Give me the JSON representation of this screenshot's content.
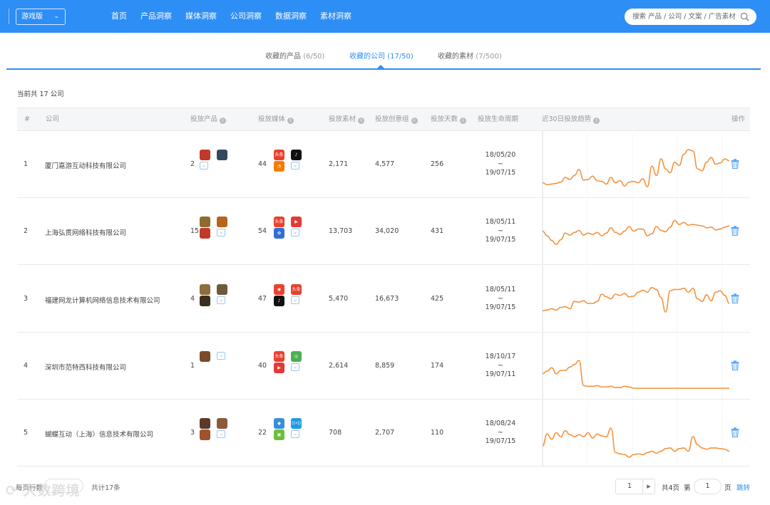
{
  "header": {
    "version_label": "游戏版",
    "nav": [
      "首页",
      "产品洞察",
      "媒体洞察",
      "公司洞察",
      "数据洞察",
      "素材洞察"
    ],
    "search_placeholder": "搜索 产品 / 公司 / 文案 / 广告素材"
  },
  "tabs": [
    {
      "label": "收藏的产品",
      "count": "(6/50)"
    },
    {
      "label": "收藏的公司",
      "count": "(17/50)"
    },
    {
      "label": "收藏的素材",
      "count": "(7/500)"
    }
  ],
  "summary": "当前共 17 公司",
  "columns": [
    "#",
    "公司",
    "投放产品",
    "投放媒体",
    "投放素材",
    "投放创意组",
    "投放天数",
    "投放生命周期",
    "近30日投放趋势",
    "操作"
  ],
  "rows": [
    {
      "idx": "1",
      "company": "厦门嘉游互动科技有限公司",
      "products": "2",
      "media": "44",
      "materials": "2,171",
      "groups": "4,577",
      "days": "256",
      "start": "18/05/20",
      "sep": "~",
      "end": "19/07/15",
      "trend": [
        0.22,
        0.19,
        0.2,
        0.21,
        0.23,
        0.3,
        0.27,
        0.33,
        0.42,
        0.26,
        0.27,
        0.32,
        0.25,
        0.24,
        0.2,
        0.3,
        0.22,
        0.25,
        0.17,
        0.23,
        0.24,
        0.22,
        0.28,
        0.16,
        0.47,
        0.33,
        0.58,
        0.43,
        0.37,
        0.53,
        0.48,
        0.65,
        0.72,
        0.7,
        0.43,
        0.4,
        0.53,
        0.6,
        0.5,
        0.52,
        0.58,
        0.55
      ]
    },
    {
      "idx": "2",
      "company": "上海弘贯网络科技有限公司",
      "products": "15",
      "media": "54",
      "materials": "13,703",
      "groups": "34,020",
      "days": "431",
      "start": "18/05/11",
      "sep": "~",
      "end": "19/07/15",
      "trend": [
        0.5,
        0.43,
        0.36,
        0.3,
        0.37,
        0.47,
        0.44,
        0.48,
        0.51,
        0.44,
        0.47,
        0.45,
        0.48,
        0.43,
        0.47,
        0.55,
        0.48,
        0.45,
        0.5,
        0.57,
        0.5,
        0.53,
        0.53,
        0.43,
        0.46,
        0.57,
        0.51,
        0.49,
        0.56,
        0.66,
        0.6,
        0.63,
        0.59,
        0.6,
        0.59,
        0.58,
        0.55,
        0.56,
        0.52,
        0.53,
        0.56,
        0.58
      ]
    },
    {
      "idx": "3",
      "company": "福建网龙计算机网络信息技术有限公司",
      "products": "4",
      "media": "47",
      "materials": "5,470",
      "groups": "16,673",
      "days": "425",
      "start": "18/05/11",
      "sep": "~",
      "end": "19/07/15",
      "trend": [
        0.32,
        0.33,
        0.35,
        0.33,
        0.37,
        0.38,
        0.35,
        0.46,
        0.45,
        0.47,
        0.43,
        0.43,
        0.46,
        0.57,
        0.53,
        0.5,
        0.57,
        0.55,
        0.58,
        0.53,
        0.54,
        0.6,
        0.63,
        0.6,
        0.67,
        0.64,
        0.52,
        0.3,
        0.62,
        0.64,
        0.64,
        0.66,
        0.6,
        0.66,
        0.5,
        0.46,
        0.56,
        0.47,
        0.6,
        0.62,
        0.55,
        0.43
      ]
    },
    {
      "idx": "4",
      "company": "深圳市范特西科技有限公司",
      "products": "1",
      "media": "40",
      "materials": "2,614",
      "groups": "8,859",
      "days": "174",
      "start": "18/10/17",
      "sep": "~",
      "end": "19/07/11",
      "trend": [
        0.38,
        0.42,
        0.47,
        0.38,
        0.43,
        0.43,
        0.48,
        0.52,
        0.58,
        0.2,
        0.19,
        0.19,
        0.2,
        0.18,
        0.18,
        0.19,
        0.17,
        0.17,
        0.19,
        0.18,
        0.16,
        0.16,
        0.16,
        0.16,
        0.16,
        0.16,
        0.16,
        0.16,
        0.16,
        0.16,
        0.16,
        0.16,
        0.16,
        0.16,
        0.16,
        0.16,
        0.16,
        0.16,
        0.16,
        0.16,
        0.16,
        0.16
      ]
    },
    {
      "idx": "5",
      "company": "蝴蝶互动（上海）信息技术有限公司",
      "products": "3",
      "media": "22",
      "materials": "708",
      "groups": "2,707",
      "days": "110",
      "start": "18/08/24",
      "sep": "~",
      "end": "19/07/15",
      "trend": [
        0.3,
        0.48,
        0.4,
        0.5,
        0.44,
        0.53,
        0.47,
        0.44,
        0.47,
        0.44,
        0.5,
        0.42,
        0.48,
        0.45,
        0.44,
        0.57,
        0.2,
        0.18,
        0.17,
        0.13,
        0.17,
        0.18,
        0.17,
        0.2,
        0.22,
        0.19,
        0.22,
        0.26,
        0.27,
        0.22,
        0.26,
        0.27,
        0.22,
        0.44,
        0.32,
        0.27,
        0.25,
        0.27,
        0.27,
        0.26,
        0.25,
        0.22
      ]
    }
  ],
  "footer": {
    "left_label": "每页行数",
    "total": "共计17条",
    "page_current": "1",
    "page_total": "共4页",
    "goto_prefix": "第",
    "goto_value": "1",
    "goto_suffix": "页",
    "jump": "跳转",
    "watermark": "大数跨境"
  },
  "colors": {
    "primary": "#2d8ef5",
    "trend_line": "#f5923e"
  }
}
